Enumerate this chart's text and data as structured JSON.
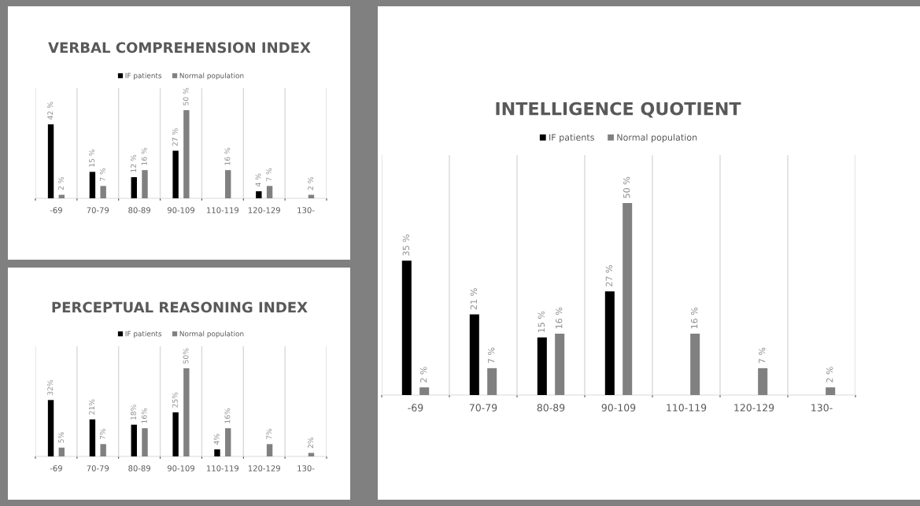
{
  "chart_data": [
    {
      "type": "bar",
      "title": "VERBAL COMPREHENSION INDEX",
      "categories": [
        "-69",
        "70-79",
        "80-89",
        "90-109",
        "110-119",
        "120-129",
        "130-"
      ],
      "legend": "top",
      "grid": "x",
      "series": [
        {
          "name": "IF patients",
          "color": "#000000",
          "values": [
            42,
            15,
            12,
            27,
            null,
            4,
            null
          ],
          "value_labels": [
            "42 %",
            "15 %",
            "12 %",
            "27 %",
            null,
            "4 %",
            null
          ]
        },
        {
          "name": "Normal population",
          "color": "#808080",
          "values": [
            2,
            7,
            16,
            50,
            16,
            7,
            2
          ],
          "value_labels": [
            "2 %",
            "7 %",
            "16 %",
            "50 %",
            "16 %",
            "7 %",
            "2 %"
          ]
        }
      ]
    },
    {
      "type": "bar",
      "title": "PERCEPTUAL REASONING INDEX",
      "categories": [
        "-69",
        "70-79",
        "80-89",
        "90-109",
        "110-119",
        "120-129",
        "130-"
      ],
      "legend": "top",
      "grid": "x",
      "series": [
        {
          "name": "IF patients",
          "color": "#000000",
          "values": [
            32,
            21,
            18,
            25,
            4,
            null,
            null
          ],
          "value_labels": [
            "32%",
            "21%",
            "18%",
            "25%",
            "4%",
            null,
            null
          ]
        },
        {
          "name": "Normal population",
          "color": "#808080",
          "values": [
            5,
            7,
            16,
            50,
            16,
            7,
            2
          ],
          "value_labels": [
            "5%",
            "7%",
            "16%",
            "50%",
            "16%",
            "7%",
            "2%"
          ]
        }
      ]
    },
    {
      "type": "bar",
      "title": "INTELLIGENCE QUOTIENT",
      "categories": [
        "-69",
        "70-79",
        "80-89",
        "90-109",
        "110-119",
        "120-129",
        "130-"
      ],
      "legend": "top",
      "grid": "x",
      "series": [
        {
          "name": "IF patients",
          "color": "#000000",
          "values": [
            35,
            21,
            15,
            27,
            null,
            null,
            null
          ],
          "value_labels": [
            "35 %",
            "21 %",
            "15 %",
            "27 %",
            null,
            null,
            null
          ]
        },
        {
          "name": "Normal population",
          "color": "#808080",
          "values": [
            2,
            7,
            16,
            50,
            16,
            7,
            2
          ],
          "value_labels": [
            "2 %",
            "7 %",
            "16 %",
            "50 %",
            "16 %",
            "7 %",
            "2 %"
          ]
        }
      ]
    }
  ]
}
